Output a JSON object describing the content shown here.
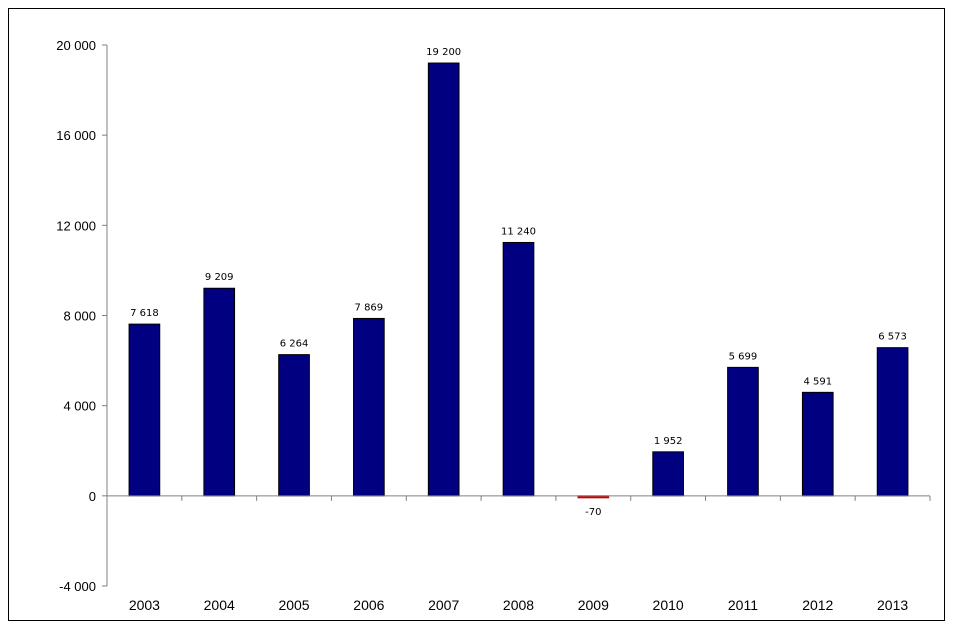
{
  "chart_data": {
    "type": "bar",
    "title": "",
    "xlabel": "",
    "ylabel": "",
    "categories": [
      "2003",
      "2004",
      "2005",
      "2006",
      "2007",
      "2008",
      "2009",
      "2010",
      "2011",
      "2012",
      "2013"
    ],
    "values": [
      7618,
      9209,
      6264,
      7869,
      19200,
      11240,
      -70,
      1952,
      5699,
      4591,
      6573
    ],
    "value_labels": [
      "7 618",
      "9 209",
      "6 264",
      "7 869",
      "19 200",
      "11 240",
      "-70",
      "1 952",
      "5 699",
      "4 591",
      "6 573"
    ],
    "ylim": [
      -4000,
      20000
    ],
    "yticks": [
      20000,
      16000,
      12000,
      8000,
      4000,
      0,
      -4000
    ],
    "ytick_labels": [
      "20 000",
      "16 000",
      "12 000",
      "8 000",
      "4 000",
      "0",
      "-4 000"
    ],
    "grid": false,
    "legend": "none",
    "colors": {
      "positive_bar": "#000080",
      "negative_bar": "#cc0000",
      "axis": "#808080",
      "frame": "#000000"
    }
  }
}
